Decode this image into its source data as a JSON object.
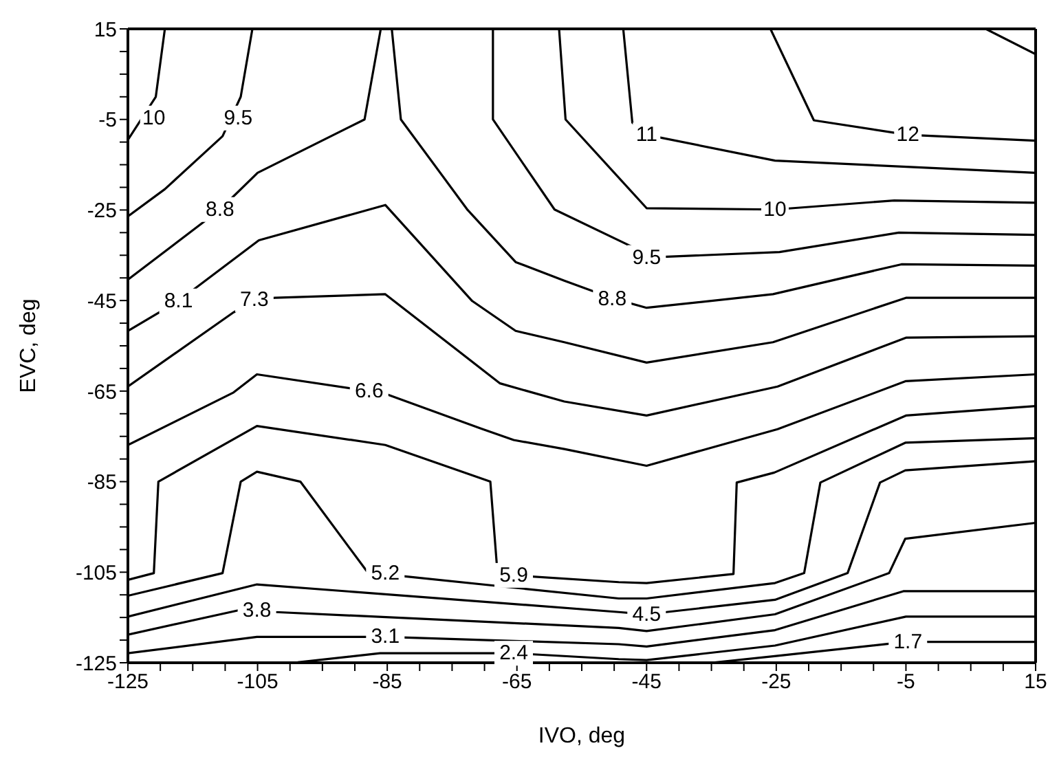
{
  "chart_data": {
    "type": "line",
    "xlabel": "IVO, deg",
    "ylabel": "EVC, deg",
    "xlim": [
      -125,
      15
    ],
    "ylim": [
      -125,
      15
    ],
    "xticks": [
      -125,
      {
        "value": -120,
        "label": null
      },
      {
        "value": -115,
        "label": null
      },
      {
        "value": -110,
        "label": null
      },
      -105,
      {
        "value": -100,
        "label": null
      },
      {
        "value": -95,
        "label": null
      },
      {
        "value": -90,
        "label": null
      },
      -85,
      {
        "value": -80,
        "label": null
      },
      {
        "value": -75,
        "label": null
      },
      {
        "value": -70,
        "label": null
      },
      -65,
      {
        "value": -60,
        "label": null
      },
      {
        "value": -55,
        "label": null
      },
      {
        "value": -50,
        "label": null
      },
      -45,
      {
        "value": -40,
        "label": null
      },
      {
        "value": -35,
        "label": null
      },
      {
        "value": -30,
        "label": null
      },
      -25,
      {
        "value": -20,
        "label": null
      },
      {
        "value": -15,
        "label": null
      },
      {
        "value": -10,
        "label": null
      },
      -5,
      {
        "value": 0,
        "label": null
      },
      {
        "value": 5,
        "label": null
      },
      {
        "value": 10,
        "label": null
      },
      15
    ],
    "yticks": [
      -125,
      {
        "value": -120,
        "label": null
      },
      {
        "value": -115,
        "label": null
      },
      {
        "value": -110,
        "label": null
      },
      -105,
      {
        "value": -100,
        "label": null
      },
      {
        "value": -95,
        "label": null
      },
      {
        "value": -90,
        "label": null
      },
      -85,
      {
        "value": -80,
        "label": null
      },
      {
        "value": -75,
        "label": null
      },
      {
        "value": -70,
        "label": null
      },
      -65,
      {
        "value": -60,
        "label": null
      },
      {
        "value": -55,
        "label": null
      },
      {
        "value": -50,
        "label": null
      },
      -45,
      {
        "value": -40,
        "label": null
      },
      {
        "value": -35,
        "label": null
      },
      {
        "value": -30,
        "label": null
      },
      -25,
      {
        "value": -20,
        "label": null
      },
      {
        "value": -15,
        "label": null
      },
      {
        "value": -10,
        "label": null
      },
      -5,
      {
        "value": 0,
        "label": null
      },
      {
        "value": 5,
        "label": null
      },
      {
        "value": 10,
        "label": null
      },
      15
    ],
    "series": [
      {
        "color": "#000000",
        "x": [
          7.3,
          15
        ],
        "values": [
          15,
          9.4
        ]
      },
      {
        "color": "#000000",
        "x": [
          -25.9,
          -19.2,
          -4.7,
          15
        ],
        "values": [
          15,
          -5.2,
          -8.4,
          -9.7
        ]
      },
      {
        "color": "#000000",
        "x": [
          -48.6,
          -47.2,
          -45,
          -25.2,
          15
        ],
        "values": [
          15,
          -5.7,
          -8.4,
          -14.1,
          -16.8
        ]
      },
      {
        "color": "#000000",
        "x": [
          -58.5,
          -57.5,
          -45,
          -25.2,
          -6.8,
          15
        ],
        "values": [
          15,
          -5,
          -24.6,
          -24.9,
          -22.9,
          -23.4
        ]
      },
      {
        "color": "#000000",
        "x": [
          -119.3,
          -120.7,
          -125
        ],
        "values": [
          15,
          0,
          -9.5
        ]
      },
      {
        "color": "#000000",
        "x": [
          -105.8,
          -107.6,
          -110.4,
          -119.3,
          -125
        ],
        "values": [
          15,
          0,
          -8.7,
          -20.4,
          -26.4
        ]
      },
      {
        "color": "#000000",
        "x": [
          -68.7,
          -68.7,
          -59.2,
          -46.7,
          -45,
          -24.5,
          -6.1,
          15
        ],
        "values": [
          15,
          -5,
          -24.9,
          -33.5,
          -35.5,
          -34.3,
          -30,
          -30.5
        ]
      },
      {
        "color": "#000000",
        "x": [
          -125,
          -110.8,
          -105,
          -88.5,
          -86,
          -84.3,
          -82.9,
          -72.6,
          -65.2,
          -57.7,
          -50.3,
          -45,
          -25.5,
          -5.7,
          15
        ],
        "values": [
          -40.4,
          -24.9,
          -16.8,
          -5,
          15,
          15,
          -5,
          -25,
          -36.5,
          -40.6,
          -44.5,
          -46.6,
          -43.6,
          -37,
          -37.3
        ]
      },
      {
        "color": "#000000",
        "x": [
          -125,
          -117.2,
          -104.8,
          -85.3,
          -71.9,
          -65.2,
          -57.7,
          -45,
          -25.5,
          -5,
          15
        ],
        "values": [
          -51.7,
          -45.1,
          -31.7,
          -23.9,
          -45.1,
          -51.7,
          -54.2,
          -58.7,
          -54.2,
          -44.4,
          -44.4
        ]
      },
      {
        "color": "#000000",
        "x": [
          -125,
          -108.7,
          -105.5,
          -102.3,
          -85.3,
          -67.6,
          -57.7,
          -45,
          -24.8,
          -5,
          15
        ],
        "values": [
          -64,
          -47.6,
          -44.8,
          -44.4,
          -43.6,
          -63.3,
          -67.3,
          -70.4,
          -64,
          -53.2,
          -52.9
        ]
      },
      {
        "color": "#000000",
        "x": [
          -125,
          -108.7,
          -105.1,
          -87.8,
          -85.3,
          -70.5,
          -65.5,
          -57.7,
          -45,
          -24.8,
          -5,
          15
        ],
        "values": [
          -76.9,
          -65.3,
          -61.3,
          -65,
          -65.6,
          -73.3,
          -75.8,
          -77.8,
          -81.5,
          -73.4,
          -62.8,
          -61.3
        ]
      },
      {
        "color": "#000000",
        "x": [
          -125,
          -121,
          -120.3,
          -105.1,
          -85.3,
          -69.1,
          -68,
          -65.5,
          -49.3,
          -45,
          -31.6,
          -31.1,
          -25.3,
          -5,
          15
        ],
        "values": [
          -106.7,
          -105.2,
          -85,
          -72.7,
          -76.9,
          -85,
          -105.2,
          -105.7,
          -107.2,
          -107.4,
          -105.4,
          -85.2,
          -83,
          -70.4,
          -68.3
        ]
      },
      {
        "color": "#000000",
        "x": [
          -125,
          -110.4,
          -107.6,
          -105.1,
          -98.4,
          -88.2,
          -85.3,
          -82.5,
          -49.3,
          -45,
          -25.2,
          -20.7,
          -18.2,
          -5.1,
          15
        ],
        "values": [
          -110.2,
          -105.2,
          -85,
          -82.8,
          -85,
          -104.7,
          -105.2,
          -105.9,
          -110.8,
          -110.8,
          -107.4,
          -105.2,
          -85.2,
          -76.4,
          -75.4
        ]
      },
      {
        "color": "#000000",
        "x": [
          -125,
          -105.1,
          -49.3,
          -45,
          -25.2,
          -14,
          -9,
          -5.1,
          15
        ],
        "values": [
          -114.8,
          -107.7,
          -113.8,
          -114.3,
          -111.1,
          -105.2,
          -85.2,
          -82.5,
          -80.5
        ]
      },
      {
        "color": "#000000",
        "x": [
          -125,
          -107.6,
          -105.1,
          -102.3,
          -49.3,
          -45,
          -25.2,
          -7.6,
          -5.1,
          15
        ],
        "values": [
          -118.8,
          -113.3,
          -113.5,
          -113.8,
          -117.3,
          -118,
          -114.3,
          -105.2,
          -97.6,
          -94.1
        ]
      },
      {
        "color": "#000000",
        "x": [
          -125,
          -105.1,
          -85.3,
          -49.3,
          -45,
          -25.2,
          -5.4,
          15
        ],
        "values": [
          -122.9,
          -119.3,
          -119.3,
          -120.9,
          -121.4,
          -117.8,
          -109.2,
          -109.2
        ]
      },
      {
        "color": "#000000",
        "x": [
          -98.8,
          -86.1,
          -65.5,
          -49.3,
          -45,
          -25.2,
          -5,
          15
        ],
        "values": [
          -124.9,
          -122.9,
          -122.9,
          -124.2,
          -124.4,
          -121.2,
          -114.8,
          -114.8
        ]
      },
      {
        "color": "#000000",
        "x": [
          -35,
          -25,
          -5,
          15
        ],
        "values": [
          -125,
          -123.5,
          -120.4,
          -120.4
        ]
      }
    ],
    "annotations": [
      {
        "text": "10",
        "x": -121,
        "y": -4.7
      },
      {
        "text": "9.5",
        "x": -108,
        "y": -4.7
      },
      {
        "text": "8.8",
        "x": -110.8,
        "y": -24.9
      },
      {
        "text": "8.1",
        "x": -117.2,
        "y": -45.1
      },
      {
        "text": "7.3",
        "x": -105.5,
        "y": -44.8
      },
      {
        "text": "6.6",
        "x": -87.8,
        "y": -65
      },
      {
        "text": "5.2",
        "x": -85.3,
        "y": -105.2
      },
      {
        "text": "5.9",
        "x": -65.5,
        "y": -105.7
      },
      {
        "text": "3.8",
        "x": -105.1,
        "y": -113.5
      },
      {
        "text": "3.1",
        "x": -85.3,
        "y": -119.3
      },
      {
        "text": "2.4",
        "x": -65.5,
        "y": -122.9
      },
      {
        "text": "4.5",
        "x": -45,
        "y": -114.3
      },
      {
        "text": "1.7",
        "x": -4.7,
        "y": -120.4
      },
      {
        "text": "11",
        "x": -45,
        "y": -8.4
      },
      {
        "text": "12",
        "x": -4.7,
        "y": -8.4
      },
      {
        "text": "10",
        "x": -25.2,
        "y": -24.9
      },
      {
        "text": "9.5",
        "x": -45,
        "y": -35.5
      },
      {
        "text": "8.8",
        "x": -50.3,
        "y": -44.6
      }
    ]
  }
}
